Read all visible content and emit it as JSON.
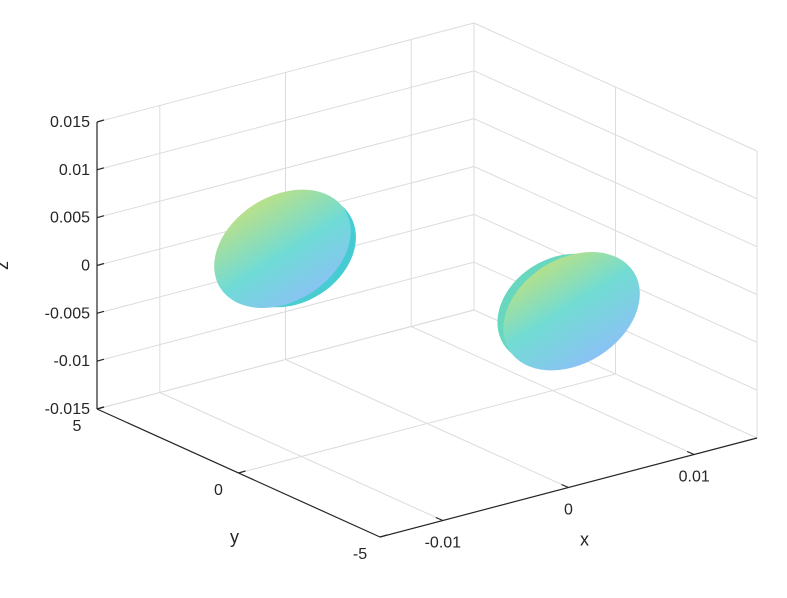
{
  "chart_data": {
    "type": "surface3d",
    "xlabel": "x",
    "ylabel": "y",
    "zlabel": "z",
    "xlim": [
      -0.015,
      0.015
    ],
    "ylim": [
      -5,
      5
    ],
    "zlim": [
      -0.015,
      0.015
    ],
    "x_ticks": [
      {
        "value": -0.01,
        "label": "-0.01"
      },
      {
        "value": 0,
        "label": "0"
      },
      {
        "value": 0.01,
        "label": "0.01"
      }
    ],
    "y_ticks": [
      {
        "value": 5,
        "label": "5"
      },
      {
        "value": 0,
        "label": "0"
      },
      {
        "value": -5,
        "label": "-5"
      }
    ],
    "z_ticks": [
      {
        "value": 0.015,
        "label": "0.015"
      },
      {
        "value": 0.01,
        "label": "0.01"
      },
      {
        "value": 0.005,
        "label": "0.005"
      },
      {
        "value": 0,
        "label": "0"
      },
      {
        "value": -0.005,
        "label": "-0.005"
      },
      {
        "value": -0.01,
        "label": "-0.01"
      },
      {
        "value": -0.015,
        "label": "-0.015"
      }
    ],
    "grid": true,
    "box": false,
    "colormap": "parula-like",
    "colors": {
      "high": "#b9e08a",
      "mid": "#6fdbd6",
      "low": "#88c4f2"
    },
    "surfaces": [
      {
        "center": {
          "x": -0.007,
          "y": 2,
          "z": 0.003
        },
        "radius": 0.007
      },
      {
        "center": {
          "x": 0.007,
          "y": -2,
          "z": -0.003
        },
        "radius": 0.007
      }
    ]
  }
}
